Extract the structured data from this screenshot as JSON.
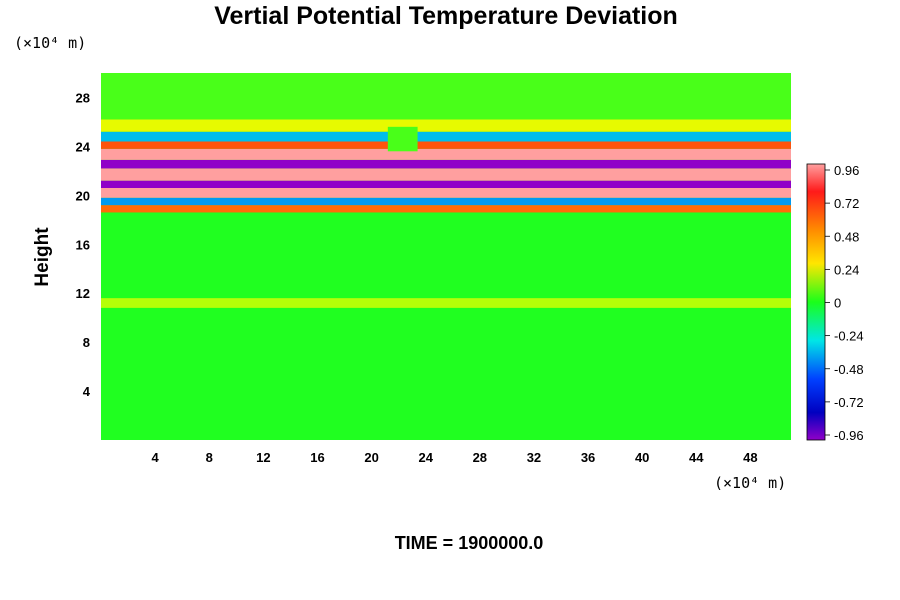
{
  "chart_data": {
    "type": "heatmap",
    "title": "Vertial Potential Temperature Deviation",
    "ylabel": "Height",
    "y_unit": "(×10⁴ m)",
    "x_unit": "(×10⁴ m)",
    "xlim": [
      0,
      51
    ],
    "ylim": [
      0,
      30
    ],
    "x_ticks": [
      4,
      8,
      12,
      16,
      20,
      24,
      28,
      32,
      36,
      40,
      44,
      48
    ],
    "y_ticks": [
      4,
      8,
      12,
      16,
      20,
      24,
      28
    ],
    "colorbar": {
      "ticks": [
        "0.96",
        "0.72",
        "0.48",
        "0.24",
        "0",
        "-0.24",
        "-0.48",
        "-0.72",
        "-0.96"
      ],
      "range": [
        -0.96,
        0.96
      ]
    },
    "bands": [
      {
        "ymin": 0.0,
        "ymax": 10.8,
        "value": 0.0
      },
      {
        "ymin": 10.8,
        "ymax": 11.6,
        "value": 0.18
      },
      {
        "ymin": 11.6,
        "ymax": 18.6,
        "value": 0.0
      },
      {
        "ymin": 18.6,
        "ymax": 19.2,
        "value": 0.55
      },
      {
        "ymin": 19.2,
        "ymax": 19.8,
        "value": -0.35
      },
      {
        "ymin": 19.8,
        "ymax": 20.6,
        "value": 0.96
      },
      {
        "ymin": 20.6,
        "ymax": 21.2,
        "value": -0.96
      },
      {
        "ymin": 21.2,
        "ymax": 22.2,
        "value": 0.96
      },
      {
        "ymin": 22.2,
        "ymax": 22.9,
        "value": -0.96
      },
      {
        "ymin": 22.9,
        "ymax": 23.8,
        "value": 0.96
      },
      {
        "ymin": 23.8,
        "ymax": 24.4,
        "value": 0.6
      },
      {
        "ymin": 24.4,
        "ymax": 25.2,
        "value": -0.3
      },
      {
        "ymin": 25.2,
        "ymax": 26.2,
        "value": 0.25
      },
      {
        "ymin": 26.2,
        "ymax": 30.0,
        "value": 0.05
      }
    ],
    "time_label": "TIME = 1900000.0"
  }
}
